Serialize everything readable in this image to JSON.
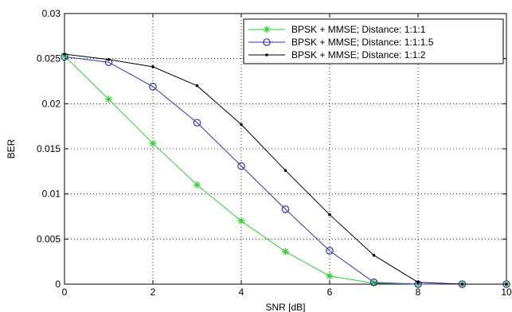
{
  "chart_data": {
    "type": "line",
    "xlabel": "SNR [dB]",
    "ylabel": "BER",
    "xlim": [
      0,
      10
    ],
    "ylim": [
      0,
      0.03
    ],
    "xticks": [
      "0",
      "2",
      "4",
      "6",
      "8",
      "10"
    ],
    "yticks": [
      "0",
      "0.005",
      "0.01",
      "0.015",
      "0.02",
      "0.025",
      "0.03"
    ],
    "grid": true,
    "legend_position": "top-right",
    "x": [
      0,
      1,
      2,
      3,
      4,
      5,
      6,
      7,
      8,
      9,
      10
    ],
    "series": [
      {
        "name": "BPSK + MMSE; Distance: 1:1:1",
        "color": "#33cc33",
        "marker": "asterisk",
        "values": [
          0.0253,
          0.0205,
          0.0156,
          0.011,
          0.007,
          0.0036,
          0.0009,
          0.0001,
          0.0,
          0.0,
          0.0
        ]
      },
      {
        "name": "BPSK + MMSE; Distance: 1:1:1.5",
        "color": "#3333aa",
        "marker": "circle",
        "values": [
          0.0252,
          0.0246,
          0.0219,
          0.0179,
          0.0131,
          0.0083,
          0.0037,
          0.0002,
          0.0,
          0.0,
          0.0
        ]
      },
      {
        "name": "BPSK + MMSE; Distance: 1:1:2",
        "color": "#000000",
        "marker": "dot",
        "values": [
          0.0255,
          0.0249,
          0.0241,
          0.022,
          0.0177,
          0.0126,
          0.0077,
          0.0032,
          0.0002,
          0.0,
          0.0
        ]
      }
    ]
  }
}
